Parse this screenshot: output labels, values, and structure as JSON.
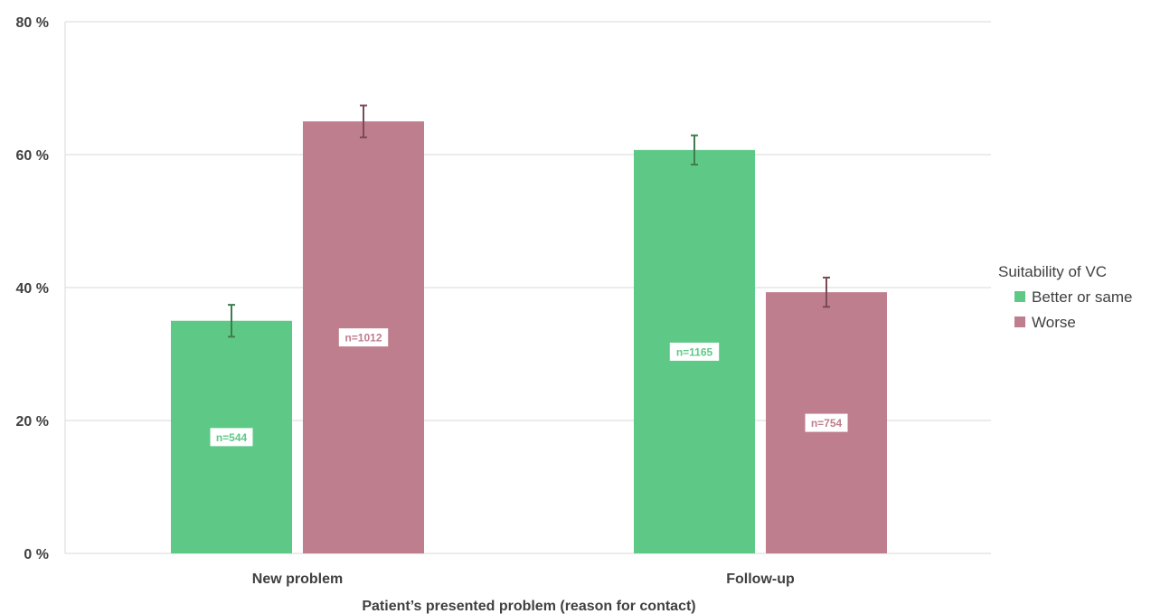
{
  "chart_data": {
    "type": "bar",
    "categories": [
      "New problem",
      "Follow-up"
    ],
    "series": [
      {
        "name": "Better or same",
        "color": "#5ec987",
        "values": [
          35,
          60.7
        ],
        "error": [
          2.4,
          2.2
        ],
        "labels": [
          "n=544",
          "n=1165"
        ]
      },
      {
        "name": "Worse",
        "color": "#be7e8d",
        "values": [
          65,
          39.3
        ],
        "error": [
          2.4,
          2.2
        ],
        "labels": [
          "n=1012",
          "n=754"
        ]
      }
    ],
    "yticks": [
      0,
      20,
      40,
      60,
      80
    ],
    "ytick_labels": [
      "0 %",
      "20 %",
      "40 %",
      "60 %",
      "80 %"
    ],
    "ylim": [
      0,
      80
    ],
    "xlabel": "Patient’s presented problem (reason for contact)",
    "ylabel": "",
    "legend_title": "Suitability of VC",
    "legend_position": "right",
    "grid": true
  }
}
